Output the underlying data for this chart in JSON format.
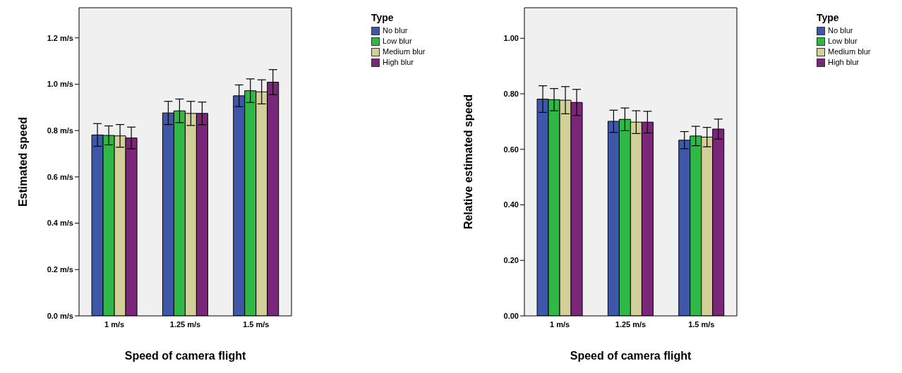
{
  "chart_data": [
    {
      "type": "bar",
      "xlabel": "Speed of camera flight",
      "ylabel": "Estimated speed",
      "legend_title": "Type",
      "legend": "top right",
      "categories": [
        "1 m/s",
        "1.25 m/s",
        "1.5 m/s"
      ],
      "series": [
        {
          "name": "No blur",
          "color": "#3f57a8",
          "values": [
            0.781,
            0.876,
            0.95
          ],
          "errors": [
            0.049,
            0.05,
            0.047
          ]
        },
        {
          "name": "Low blur",
          "color": "#2fb845",
          "values": [
            0.779,
            0.885,
            0.972
          ],
          "errors": [
            0.041,
            0.051,
            0.051
          ]
        },
        {
          "name": "Medium blur",
          "color": "#d3cf98",
          "values": [
            0.777,
            0.874,
            0.967
          ],
          "errors": [
            0.049,
            0.052,
            0.052
          ]
        },
        {
          "name": "High blur",
          "color": "#7b2779",
          "values": [
            0.768,
            0.874,
            1.009
          ],
          "errors": [
            0.047,
            0.049,
            0.054
          ]
        }
      ],
      "ylim": [
        0,
        1.33
      ],
      "yticks": [
        {
          "value": 0,
          "label": "0.0 m/s"
        },
        {
          "value": 0.2,
          "label": "0.2 m/s"
        },
        {
          "value": 0.4,
          "label": "0.4 m/s"
        },
        {
          "value": 0.6,
          "label": "0.6 m/s"
        },
        {
          "value": 0.8,
          "label": "0.8 m/s"
        },
        {
          "value": 1.0,
          "label": "1.0 m/s"
        },
        {
          "value": 1.2,
          "label": "1.2 m/s"
        }
      ],
      "grid": false
    },
    {
      "type": "bar",
      "xlabel": "Speed of camera flight",
      "ylabel": "Relative estimated speed",
      "legend_title": "Type",
      "legend": "top right",
      "categories": [
        "1 m/s",
        "1.25 m/s",
        "1.5 m/s"
      ],
      "series": [
        {
          "name": "No blur",
          "color": "#3f57a8",
          "values": [
            0.781,
            0.701,
            0.633
          ],
          "errors": [
            0.048,
            0.04,
            0.031
          ]
        },
        {
          "name": "Low blur",
          "color": "#2fb845",
          "values": [
            0.779,
            0.708,
            0.648
          ],
          "errors": [
            0.04,
            0.041,
            0.035
          ]
        },
        {
          "name": "Medium blur",
          "color": "#d3cf98",
          "values": [
            0.777,
            0.698,
            0.644
          ],
          "errors": [
            0.049,
            0.041,
            0.035
          ]
        },
        {
          "name": "High blur",
          "color": "#7b2779",
          "values": [
            0.769,
            0.698,
            0.673
          ],
          "errors": [
            0.047,
            0.039,
            0.036
          ]
        }
      ],
      "ylim": [
        0,
        1.11
      ],
      "yticks": [
        {
          "value": 0,
          "label": "0.00"
        },
        {
          "value": 0.2,
          "label": "0.20"
        },
        {
          "value": 0.4,
          "label": "0.40"
        },
        {
          "value": 0.6,
          "label": "0.60"
        },
        {
          "value": 0.8,
          "label": "0.80"
        },
        {
          "value": 1.0,
          "label": "1.00"
        }
      ],
      "grid": false
    }
  ]
}
